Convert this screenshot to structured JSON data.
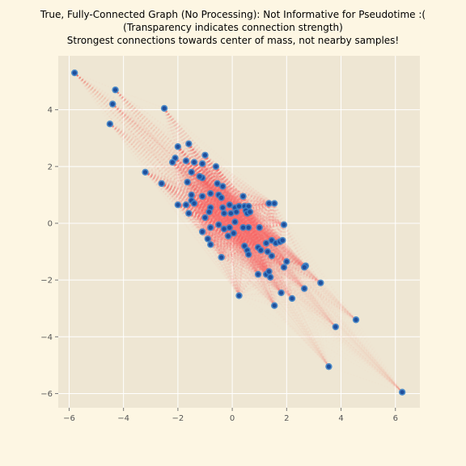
{
  "title_lines": [
    "True, Fully-Connected Graph (No Processing): Not Informative for Pseudotime :(",
    "(Transparency indicates connection strength)",
    "Strongest connections towards center of mass, not nearby samples!"
  ],
  "chart_data": {
    "type": "scatter",
    "title": "True, Fully-Connected Graph (No Processing): Not Informative for Pseudotime :(\n(Transparency indicates connection strength)\nStrongest connections towards center of mass, not nearby samples!",
    "xlabel": "",
    "ylabel": "",
    "xlim": [
      -6.4,
      6.9
    ],
    "ylim": [
      -6.5,
      5.9
    ],
    "xticks": [
      -6,
      -4,
      -2,
      0,
      2,
      4,
      6
    ],
    "yticks": [
      -6,
      -4,
      -2,
      0,
      2,
      4
    ],
    "grid": true,
    "edges": "fully-connected graph between all points; edge opacity indicates connection strength",
    "colors": {
      "background": "#fdf6e3",
      "plot_area": "#eee6d3",
      "grid": "#ffffff",
      "point_fill": "#1f4e9c",
      "point_outer": "#3b82c8",
      "edge": "#ff6e6e"
    },
    "points": [
      {
        "x": -5.8,
        "y": 5.3
      },
      {
        "x": -4.3,
        "y": 4.7
      },
      {
        "x": -4.4,
        "y": 4.2
      },
      {
        "x": -4.5,
        "y": 3.5
      },
      {
        "x": -2.5,
        "y": 4.05
      },
      {
        "x": -3.2,
        "y": 1.8
      },
      {
        "x": -2.6,
        "y": 1.4
      },
      {
        "x": -2.0,
        "y": 0.65
      },
      {
        "x": -2.0,
        "y": 2.7
      },
      {
        "x": -2.1,
        "y": 2.3
      },
      {
        "x": -2.2,
        "y": 2.15
      },
      {
        "x": -1.6,
        "y": 2.8
      },
      {
        "x": -1.7,
        "y": 2.2
      },
      {
        "x": -1.4,
        "y": 2.15
      },
      {
        "x": -1.1,
        "y": 2.1
      },
      {
        "x": -1.0,
        "y": 2.4
      },
      {
        "x": -0.6,
        "y": 2.0
      },
      {
        "x": -1.5,
        "y": 1.8
      },
      {
        "x": -1.1,
        "y": 1.6
      },
      {
        "x": -1.2,
        "y": 1.65
      },
      {
        "x": -1.65,
        "y": 1.45
      },
      {
        "x": -1.5,
        "y": 1.0
      },
      {
        "x": -1.5,
        "y": 0.8
      },
      {
        "x": -1.7,
        "y": 0.65
      },
      {
        "x": -1.4,
        "y": 0.7
      },
      {
        "x": -1.6,
        "y": 0.35
      },
      {
        "x": -1.1,
        "y": 0.95
      },
      {
        "x": -0.8,
        "y": 1.05
      },
      {
        "x": -0.55,
        "y": 1.4
      },
      {
        "x": -0.35,
        "y": 1.3
      },
      {
        "x": -0.5,
        "y": 1.0
      },
      {
        "x": -0.4,
        "y": 0.9
      },
      {
        "x": -0.8,
        "y": 0.55
      },
      {
        "x": -0.85,
        "y": 0.4
      },
      {
        "x": -0.35,
        "y": 0.55
      },
      {
        "x": -0.1,
        "y": 0.65
      },
      {
        "x": 0.1,
        "y": 0.55
      },
      {
        "x": 0.25,
        "y": 0.6
      },
      {
        "x": 0.15,
        "y": 0.4
      },
      {
        "x": -0.3,
        "y": 0.35
      },
      {
        "x": -0.05,
        "y": 0.35
      },
      {
        "x": 0.4,
        "y": 0.95
      },
      {
        "x": 0.45,
        "y": 0.6
      },
      {
        "x": 0.6,
        "y": 0.6
      },
      {
        "x": 0.5,
        "y": 0.45
      },
      {
        "x": 0.55,
        "y": 0.35
      },
      {
        "x": 0.65,
        "y": 0.4
      },
      {
        "x": 1.35,
        "y": 0.7
      },
      {
        "x": 1.55,
        "y": 0.7
      },
      {
        "x": 1.9,
        "y": -0.05
      },
      {
        "x": -1.0,
        "y": 0.2
      },
      {
        "x": -0.8,
        "y": -0.15
      },
      {
        "x": -0.5,
        "y": -0.05
      },
      {
        "x": -0.3,
        "y": -0.2
      },
      {
        "x": -0.1,
        "y": -0.15
      },
      {
        "x": 0.1,
        "y": 0.05
      },
      {
        "x": 0.4,
        "y": -0.15
      },
      {
        "x": 0.6,
        "y": -0.15
      },
      {
        "x": 1.0,
        "y": -0.15
      },
      {
        "x": -1.1,
        "y": -0.3
      },
      {
        "x": -0.9,
        "y": -0.55
      },
      {
        "x": -0.8,
        "y": -0.75
      },
      {
        "x": -0.15,
        "y": -0.45
      },
      {
        "x": 0.05,
        "y": -0.35
      },
      {
        "x": -0.4,
        "y": -1.2
      },
      {
        "x": 0.45,
        "y": -0.8
      },
      {
        "x": 0.55,
        "y": -0.95
      },
      {
        "x": 0.6,
        "y": -1.1
      },
      {
        "x": 0.95,
        "y": -0.85
      },
      {
        "x": 1.05,
        "y": -0.95
      },
      {
        "x": 1.25,
        "y": -0.7
      },
      {
        "x": 1.45,
        "y": -0.6
      },
      {
        "x": 1.6,
        "y": -0.7
      },
      {
        "x": 1.75,
        "y": -0.65
      },
      {
        "x": 1.85,
        "y": -0.6
      },
      {
        "x": 1.3,
        "y": -1.0
      },
      {
        "x": 1.45,
        "y": -1.15
      },
      {
        "x": 2.0,
        "y": -1.35
      },
      {
        "x": 1.9,
        "y": -1.55
      },
      {
        "x": 0.95,
        "y": -1.8
      },
      {
        "x": 1.25,
        "y": -1.8
      },
      {
        "x": 1.4,
        "y": -1.9
      },
      {
        "x": 1.35,
        "y": -1.7
      },
      {
        "x": 2.7,
        "y": -1.5
      },
      {
        "x": 2.65,
        "y": -1.55
      },
      {
        "x": 3.25,
        "y": -2.1
      },
      {
        "x": 1.8,
        "y": -2.45
      },
      {
        "x": 2.65,
        "y": -2.3
      },
      {
        "x": 0.25,
        "y": -2.55
      },
      {
        "x": 2.2,
        "y": -2.65
      },
      {
        "x": 1.55,
        "y": -2.9
      },
      {
        "x": 3.8,
        "y": -3.65
      },
      {
        "x": 4.55,
        "y": -3.4
      },
      {
        "x": 3.55,
        "y": -5.05
      },
      {
        "x": 6.25,
        "y": -5.95
      }
    ]
  }
}
